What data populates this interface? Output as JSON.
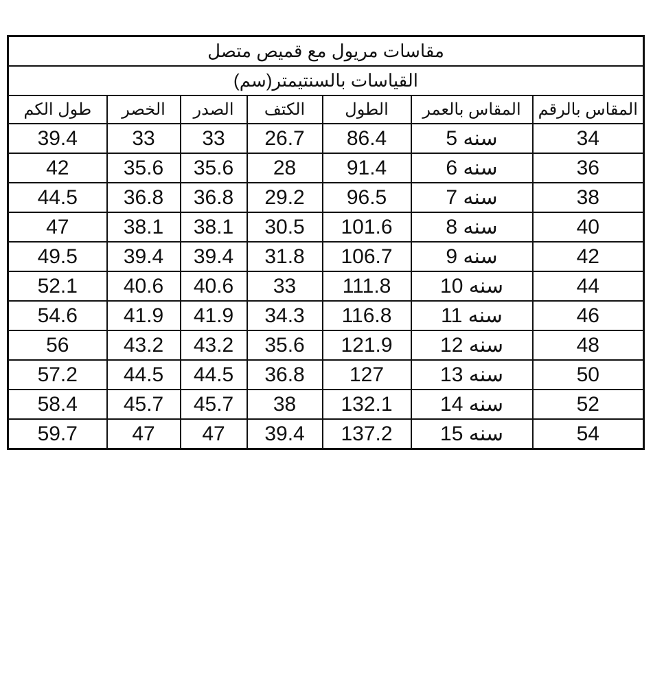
{
  "title": "مقاسات مريول مع قميص متصل",
  "subtitle": "القياسات بالسنتيمتر(سم)",
  "columns": [
    "المقاس بالرقم",
    "المقاس بالعمر",
    "الطول",
    "الكتف",
    "الصدر",
    "الخصر",
    "طول الكم"
  ],
  "rows": [
    [
      "34",
      "سنه 5",
      "86.4",
      "26.7",
      "33",
      "33",
      "39.4"
    ],
    [
      "36",
      "سنه 6",
      "91.4",
      "28",
      "35.6",
      "35.6",
      "42"
    ],
    [
      "38",
      "سنه 7",
      "96.5",
      "29.2",
      "36.8",
      "36.8",
      "44.5"
    ],
    [
      "40",
      "سنه 8",
      "101.6",
      "30.5",
      "38.1",
      "38.1",
      "47"
    ],
    [
      "42",
      "سنه 9",
      "106.7",
      "31.8",
      "39.4",
      "39.4",
      "49.5"
    ],
    [
      "44",
      "سنه 10",
      "111.8",
      "33",
      "40.6",
      "40.6",
      "52.1"
    ],
    [
      "46",
      "سنه 11",
      "116.8",
      "34.3",
      "41.9",
      "41.9",
      "54.6"
    ],
    [
      "48",
      "سنه 12",
      "121.9",
      "35.6",
      "43.2",
      "43.2",
      "56"
    ],
    [
      "50",
      "سنه 13",
      "127",
      "36.8",
      "44.5",
      "44.5",
      "57.2"
    ],
    [
      "52",
      "سنه 14",
      "132.1",
      "38",
      "45.7",
      "45.7",
      "58.4"
    ],
    [
      "54",
      "سنه 15",
      "137.2",
      "39.4",
      "47",
      "47",
      "59.7"
    ]
  ]
}
